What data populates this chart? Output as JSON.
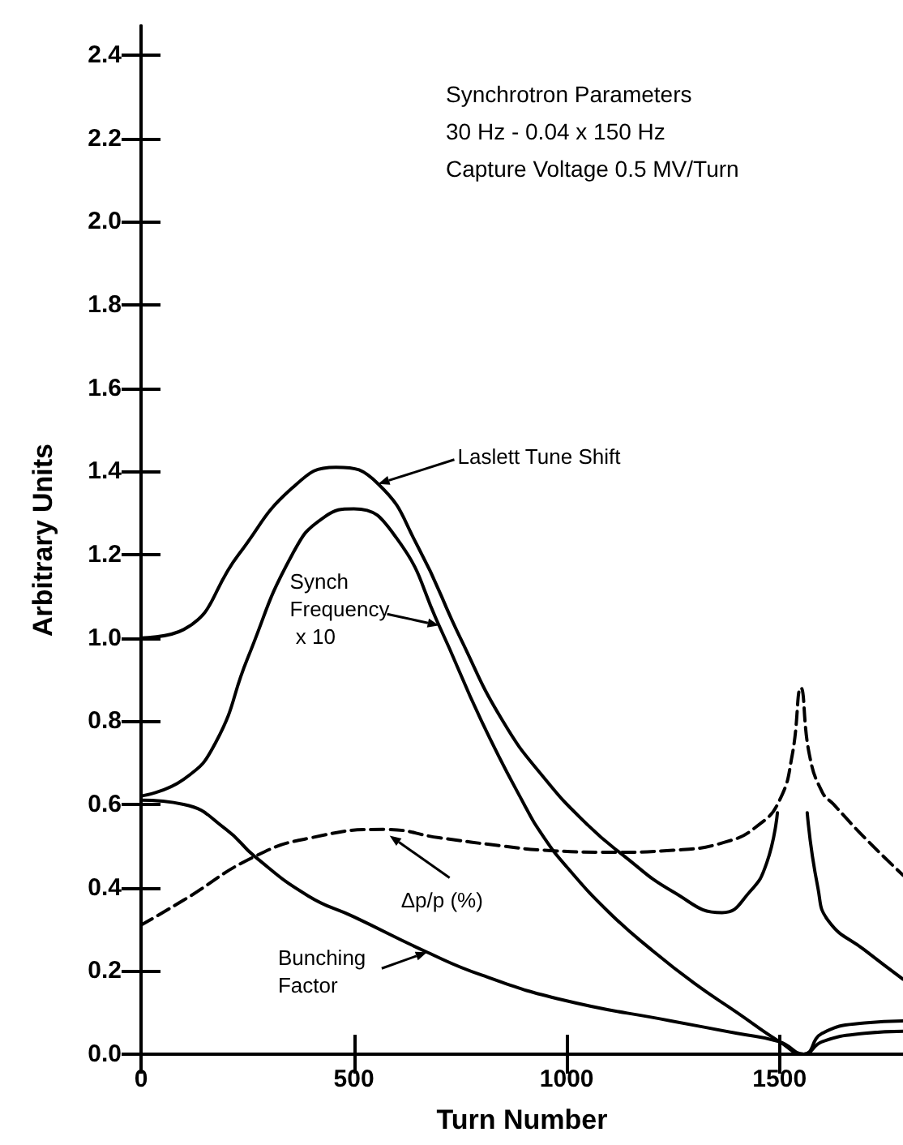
{
  "chart_data": {
    "type": "line",
    "xlabel": "Turn Number",
    "ylabel": "Arbitrary Units",
    "xlim": [
      0,
      1790
    ],
    "ylim": [
      0,
      2.47
    ],
    "xticks": [
      0,
      500,
      1000,
      1500
    ],
    "yticks": [
      {
        "value": 0,
        "label": "0.0"
      },
      {
        "value": 0.2,
        "label": "0.2"
      },
      {
        "value": 0.4,
        "label": "0.4"
      },
      {
        "value": 0.6,
        "label": "0.6"
      },
      {
        "value": 0.8,
        "label": "0.8"
      },
      {
        "value": 1.0,
        "label": "1.0"
      },
      {
        "value": 1.2,
        "label": "1.2"
      },
      {
        "value": 1.4,
        "label": "1.4"
      },
      {
        "value": 1.6,
        "label": "1.6"
      },
      {
        "value": 1.8,
        "label": "1.8"
      },
      {
        "value": 2.0,
        "label": "2.0"
      },
      {
        "value": 2.2,
        "label": "2.2"
      },
      {
        "value": 2.4,
        "label": "2.4"
      }
    ],
    "grid": false,
    "marker": "none",
    "series": [
      {
        "color": "#000000",
        "line_style": "solid",
        "x": [
          0,
          100,
          229,
          355,
          458,
          557,
          650,
          750,
          850,
          950,
          1050,
          1130,
          1250,
          1365,
          1430,
          1470,
          1495,
          1530,
          1565,
          1590,
          1615,
          1700,
          1790
        ],
        "values": [
          1.0,
          1.02,
          1.2,
          1.36,
          1.41,
          1.37,
          1.22,
          1.0,
          0.8,
          0.66,
          0.55,
          0.48,
          0.39,
          0.34,
          0.39,
          0.46,
          0.58,
          null,
          0.58,
          0.4,
          0.32,
          0.25,
          0.18
        ]
      },
      {
        "color": "#000000",
        "line_style": "solid",
        "x": [
          0,
          100,
          176,
          250,
          355,
          430,
          500,
          600,
          700,
          800,
          900,
          947,
          1000,
          1100,
          1200,
          1300,
          1400,
          1500,
          1557,
          1600,
          1700,
          1790
        ],
        "values": [
          0.62,
          0.66,
          0.75,
          0.95,
          1.2,
          1.29,
          1.31,
          1.24,
          1.03,
          0.8,
          0.6,
          0.52,
          0.45,
          0.34,
          0.25,
          0.17,
          0.1,
          0.03,
          0,
          0.03,
          0.05,
          0.055
        ]
      },
      {
        "color": "#000000",
        "line_style": "solid",
        "x": [
          0,
          100,
          200,
          267,
          393,
          500,
          672,
          800,
          992,
          1245,
          1400,
          1500,
          1557,
          1600,
          1700,
          1790
        ],
        "values": [
          0.61,
          0.6,
          0.54,
          0.475,
          0.38,
          0.33,
          0.245,
          0.19,
          0.13,
          0.08,
          0.05,
          0.03,
          0,
          0.05,
          0.075,
          0.08
        ]
      },
      {
        "color": "#000000",
        "line_style": "dashed",
        "x": [
          0,
          100,
          267,
          400,
          572,
          700,
          850,
          947,
          1100,
          1250,
          1374,
          1450,
          1500,
          1530,
          1550,
          1570,
          1600,
          1627,
          1700,
          1790
        ],
        "values": [
          0.31,
          0.37,
          0.475,
          0.52,
          0.54,
          0.52,
          0.5,
          0.49,
          0.485,
          0.49,
          0.51,
          0.55,
          0.61,
          0.72,
          0.88,
          0.72,
          0.63,
          0.6,
          0.52,
          0.43
        ]
      }
    ],
    "annotations": [
      "Synchrotron Parameters",
      "30 Hz - 0.04 x 150 Hz",
      "Capture Voltage 0.5 MV/Turn",
      {
        "text": "Laslett Tune Shift",
        "x": 557,
        "y": 1.37
      },
      {
        "text": "Synch Frequency x 10",
        "x": 700,
        "y": 1.03
      },
      {
        "text": "Δp/p (%)",
        "x": 584,
        "y": 0.525
      },
      {
        "text": "Bunching Factor",
        "x": 672,
        "y": 0.245
      }
    ]
  }
}
